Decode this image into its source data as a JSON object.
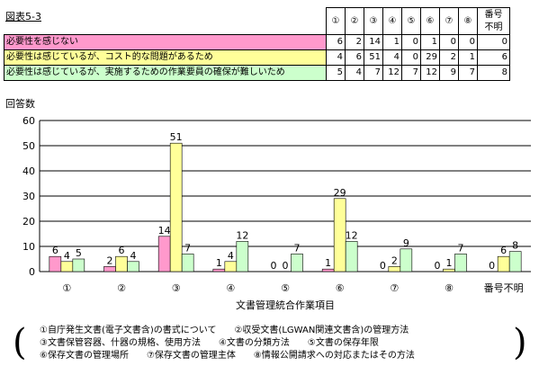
{
  "figure_id": "図表5-3",
  "table": {
    "headers": [
      "①",
      "②",
      "③",
      "④",
      "⑤",
      "⑥",
      "⑦",
      "⑧"
    ],
    "last_header": "番号不明",
    "rows": [
      {
        "label": "必要性を感じない",
        "color": "#ff99cc",
        "values": [
          "6",
          "2",
          "14",
          "1",
          "0",
          "1",
          "0",
          "0",
          "0"
        ]
      },
      {
        "label": "必要性は感じているが、コスト的な問題があるため",
        "color": "#ffff99",
        "values": [
          "4",
          "6",
          "51",
          "4",
          "0",
          "29",
          "2",
          "1",
          "6"
        ]
      },
      {
        "label": "必要性は感じているが、実施するための作業要員の確保が難しいため",
        "color": "#ccffcc",
        "values": [
          "5",
          "4",
          "7",
          "12",
          "7",
          "12",
          "9",
          "7",
          "8"
        ]
      }
    ]
  },
  "chart_data": {
    "type": "bar",
    "ylabel": "回答数",
    "xlabel": "文書管理統合作業項目",
    "categories": [
      "①",
      "②",
      "③",
      "④",
      "⑤",
      "⑥",
      "⑦",
      "⑧",
      "番号不明"
    ],
    "ylim": [
      0,
      60
    ],
    "yticks": [
      0,
      10,
      20,
      30,
      40,
      50,
      60
    ],
    "grid": "horizontal",
    "series": [
      {
        "name": "必要性を感じない",
        "color": "#ff99cc",
        "values": [
          6,
          2,
          14,
          1,
          0,
          1,
          0,
          0,
          0
        ]
      },
      {
        "name": "必要性は感じているが、コスト的な問題があるため",
        "color": "#ffff99",
        "values": [
          4,
          6,
          51,
          4,
          0,
          29,
          2,
          1,
          6
        ]
      },
      {
        "name": "必要性は感じているが、実施するための作業要員の確保が難しいため",
        "color": "#ccffcc",
        "values": [
          5,
          4,
          7,
          12,
          7,
          12,
          9,
          7,
          8
        ]
      }
    ]
  },
  "legend": {
    "lines": [
      "①自庁発生文書(電子文書含)の書式について　　②収受文書(LGWAN関連文書含)の管理方法",
      "③文書保管容器、什器の規格、使用方法　　④文書の分類方法　　⑤文書の保存年限",
      "⑥保存文書の管理場所　　⑦保存文書の管理主体　　⑧情報公開請求への対応またはその方法"
    ]
  }
}
